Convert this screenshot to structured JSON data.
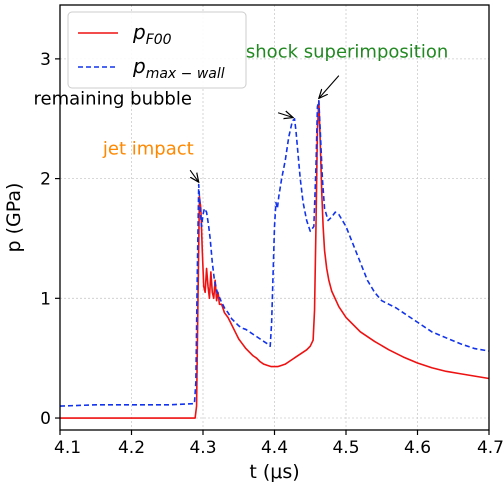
{
  "chart_data": {
    "type": "line",
    "title": "",
    "xlabel": "t (μs)",
    "ylabel": "p (GPa)",
    "xlim": [
      4.1,
      4.7
    ],
    "ylim": [
      -0.1,
      3.45
    ],
    "xticks": [
      4.1,
      4.2,
      4.3,
      4.4,
      4.5,
      4.6,
      4.7
    ],
    "xtick_labels": [
      "4.1",
      "4.2",
      "4.3",
      "4.4",
      "4.5",
      "4.6",
      "4.7"
    ],
    "yticks": [
      0,
      1,
      2,
      3
    ],
    "ytick_labels": [
      "0",
      "1",
      "2",
      "3"
    ],
    "grid": true,
    "legend_position": "top-left",
    "series": [
      {
        "name": "p_F00",
        "name_base": "p",
        "name_sub": "F00",
        "color": "#ee1111",
        "dash": "solid",
        "points": [
          [
            4.1,
            0.0
          ],
          [
            4.289,
            0.0
          ],
          [
            4.291,
            0.1
          ],
          [
            4.293,
            1.0
          ],
          [
            4.295,
            1.85
          ],
          [
            4.297,
            1.75
          ],
          [
            4.299,
            1.4
          ],
          [
            4.301,
            1.1
          ],
          [
            4.303,
            1.05
          ],
          [
            4.305,
            1.25
          ],
          [
            4.307,
            1.1
          ],
          [
            4.309,
            1.0
          ],
          [
            4.311,
            1.22
          ],
          [
            4.313,
            1.05
          ],
          [
            4.315,
            1.0
          ],
          [
            4.317,
            1.15
          ],
          [
            4.319,
            0.98
          ],
          [
            4.321,
            1.05
          ],
          [
            4.323,
            0.95
          ],
          [
            4.326,
            0.95
          ],
          [
            4.33,
            0.88
          ],
          [
            4.335,
            0.84
          ],
          [
            4.34,
            0.78
          ],
          [
            4.345,
            0.72
          ],
          [
            4.35,
            0.66
          ],
          [
            4.355,
            0.62
          ],
          [
            4.36,
            0.58
          ],
          [
            4.365,
            0.55
          ],
          [
            4.37,
            0.52
          ],
          [
            4.375,
            0.5
          ],
          [
            4.38,
            0.47
          ],
          [
            4.385,
            0.45
          ],
          [
            4.39,
            0.44
          ],
          [
            4.395,
            0.43
          ],
          [
            4.4,
            0.43
          ],
          [
            4.405,
            0.43
          ],
          [
            4.41,
            0.44
          ],
          [
            4.415,
            0.45
          ],
          [
            4.42,
            0.47
          ],
          [
            4.425,
            0.49
          ],
          [
            4.43,
            0.51
          ],
          [
            4.435,
            0.53
          ],
          [
            4.44,
            0.55
          ],
          [
            4.445,
            0.57
          ],
          [
            4.45,
            0.6
          ],
          [
            4.454,
            0.65
          ],
          [
            4.456,
            0.9
          ],
          [
            4.458,
            1.6
          ],
          [
            4.46,
            2.4
          ],
          [
            4.462,
            2.65
          ],
          [
            4.464,
            2.3
          ],
          [
            4.466,
            1.9
          ],
          [
            4.468,
            1.6
          ],
          [
            4.47,
            1.4
          ],
          [
            4.473,
            1.25
          ],
          [
            4.476,
            1.15
          ],
          [
            4.48,
            1.06
          ],
          [
            4.49,
            0.93
          ],
          [
            4.5,
            0.84
          ],
          [
            4.52,
            0.72
          ],
          [
            4.54,
            0.64
          ],
          [
            4.56,
            0.57
          ],
          [
            4.58,
            0.51
          ],
          [
            4.6,
            0.46
          ],
          [
            4.62,
            0.42
          ],
          [
            4.64,
            0.39
          ],
          [
            4.66,
            0.37
          ],
          [
            4.68,
            0.35
          ],
          [
            4.7,
            0.33
          ]
        ]
      },
      {
        "name": "p_max-wall",
        "name_base": "p",
        "name_sub": "max − wall",
        "color": "#1133ee",
        "dash": "dashed",
        "points": [
          [
            4.1,
            0.1
          ],
          [
            4.15,
            0.11
          ],
          [
            4.2,
            0.11
          ],
          [
            4.25,
            0.11
          ],
          [
            4.288,
            0.12
          ],
          [
            4.29,
            0.3
          ],
          [
            4.292,
            1.2
          ],
          [
            4.294,
            1.95
          ],
          [
            4.296,
            1.75
          ],
          [
            4.298,
            1.6
          ],
          [
            4.3,
            1.7
          ],
          [
            4.302,
            1.75
          ],
          [
            4.305,
            1.72
          ],
          [
            4.308,
            1.6
          ],
          [
            4.31,
            1.5
          ],
          [
            4.313,
            1.3
          ],
          [
            4.316,
            1.15
          ],
          [
            4.32,
            1.05
          ],
          [
            4.325,
            0.98
          ],
          [
            4.33,
            0.92
          ],
          [
            4.335,
            0.88
          ],
          [
            4.34,
            0.83
          ],
          [
            4.345,
            0.8
          ],
          [
            4.35,
            0.77
          ],
          [
            4.355,
            0.75
          ],
          [
            4.36,
            0.74
          ],
          [
            4.365,
            0.72
          ],
          [
            4.37,
            0.7
          ],
          [
            4.375,
            0.68
          ],
          [
            4.38,
            0.66
          ],
          [
            4.385,
            0.64
          ],
          [
            4.39,
            0.62
          ],
          [
            4.394,
            0.6
          ],
          [
            4.396,
            0.8
          ],
          [
            4.398,
            1.2
          ],
          [
            4.4,
            1.6
          ],
          [
            4.402,
            1.8
          ],
          [
            4.404,
            1.75
          ],
          [
            4.406,
            1.85
          ],
          [
            4.41,
            2.0
          ],
          [
            4.415,
            2.15
          ],
          [
            4.42,
            2.35
          ],
          [
            4.425,
            2.48
          ],
          [
            4.428,
            2.5
          ],
          [
            4.43,
            2.4
          ],
          [
            4.433,
            2.2
          ],
          [
            4.436,
            2.0
          ],
          [
            4.44,
            1.8
          ],
          [
            4.445,
            1.65
          ],
          [
            4.45,
            1.56
          ],
          [
            4.455,
            1.6
          ],
          [
            4.458,
            2.1
          ],
          [
            4.46,
            2.6
          ],
          [
            4.462,
            2.65
          ],
          [
            4.464,
            2.4
          ],
          [
            4.467,
            2.0
          ],
          [
            4.47,
            1.75
          ],
          [
            4.475,
            1.65
          ],
          [
            4.48,
            1.68
          ],
          [
            4.485,
            1.72
          ],
          [
            4.49,
            1.7
          ],
          [
            4.5,
            1.6
          ],
          [
            4.51,
            1.45
          ],
          [
            4.52,
            1.3
          ],
          [
            4.53,
            1.15
          ],
          [
            4.54,
            1.05
          ],
          [
            4.55,
            0.98
          ],
          [
            4.56,
            0.95
          ],
          [
            4.57,
            0.92
          ],
          [
            4.58,
            0.88
          ],
          [
            4.6,
            0.8
          ],
          [
            4.62,
            0.72
          ],
          [
            4.64,
            0.67
          ],
          [
            4.66,
            0.62
          ],
          [
            4.68,
            0.58
          ],
          [
            4.7,
            0.56
          ]
        ]
      }
    ],
    "annotations": [
      {
        "text": "jet impact",
        "color": "#ff8800",
        "x": 4.16,
        "y": 2.2,
        "arrow_to_x": 4.294,
        "arrow_to_y": 1.97,
        "arrow_from_x": 4.282,
        "arrow_from_y": 2.07,
        "anchor": "start"
      },
      {
        "text": "remaining bubble",
        "color": "#000000",
        "x": 4.063,
        "y": 2.62,
        "arrow_to_x": 4.426,
        "arrow_to_y": 2.51,
        "arrow_from_x": 4.405,
        "arrow_from_y": 2.55,
        "anchor": "start"
      },
      {
        "text": "shock superimposition",
        "color": "#228822",
        "x": 4.36,
        "y": 3.01,
        "arrow_to_x": 4.462,
        "arrow_to_y": 2.67,
        "arrow_from_x": 4.49,
        "arrow_from_y": 2.86,
        "anchor": "start"
      }
    ]
  }
}
